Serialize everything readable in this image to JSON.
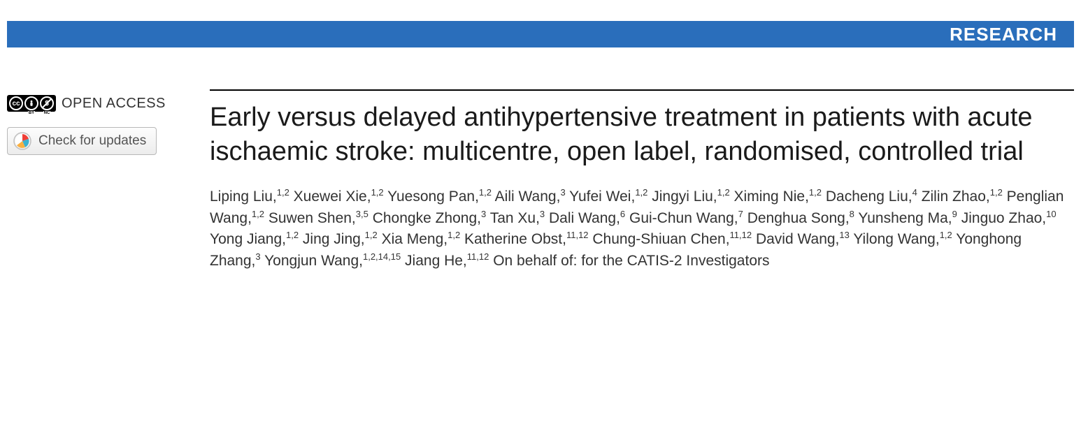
{
  "banner": {
    "label": "RESEARCH",
    "background_color": "#2a6ebb",
    "text_color": "#ffffff"
  },
  "sidebar": {
    "open_access_label": "OPEN ACCESS",
    "cc_symbols": [
      "CC",
      "BY",
      "NC"
    ],
    "updates_button_label": "Check for updates"
  },
  "article": {
    "title": "Early versus delayed antihypertensive treatment in patients with acute ischaemic stroke: multicentre, open label, randomised, controlled trial",
    "authors": [
      {
        "name": "Liping Liu",
        "aff": "1,2"
      },
      {
        "name": "Xuewei Xie",
        "aff": "1,2"
      },
      {
        "name": "Yuesong Pan",
        "aff": "1,2"
      },
      {
        "name": "Aili Wang",
        "aff": "3"
      },
      {
        "name": "Yufei Wei",
        "aff": "1,2"
      },
      {
        "name": "Jingyi Liu",
        "aff": "1,2"
      },
      {
        "name": "Ximing Nie",
        "aff": "1,2"
      },
      {
        "name": "Dacheng Liu",
        "aff": "4"
      },
      {
        "name": "Zilin Zhao",
        "aff": "1,2"
      },
      {
        "name": "Penglian Wang",
        "aff": "1,2"
      },
      {
        "name": "Suwen Shen",
        "aff": "3,5"
      },
      {
        "name": "Chongke Zhong",
        "aff": "3"
      },
      {
        "name": "Tan Xu",
        "aff": "3"
      },
      {
        "name": "Dali Wang",
        "aff": "6"
      },
      {
        "name": "Gui-Chun Wang",
        "aff": "7"
      },
      {
        "name": "Denghua Song",
        "aff": "8"
      },
      {
        "name": "Yunsheng Ma",
        "aff": "9"
      },
      {
        "name": "Jinguo Zhao",
        "aff": "10"
      },
      {
        "name": "Yong Jiang",
        "aff": "1,2"
      },
      {
        "name": "Jing Jing",
        "aff": "1,2"
      },
      {
        "name": "Xia Meng",
        "aff": "1,2"
      },
      {
        "name": "Katherine Obst",
        "aff": "11,12"
      },
      {
        "name": "Chung-Shiuan Chen",
        "aff": "11,12"
      },
      {
        "name": "David Wang",
        "aff": "13"
      },
      {
        "name": "Yilong Wang",
        "aff": "1,2"
      },
      {
        "name": "Yonghong Zhang",
        "aff": "3"
      },
      {
        "name": "Yongjun Wang",
        "aff": "1,2,14,15"
      },
      {
        "name": "Jiang He",
        "aff": "11,12"
      }
    ],
    "behalf_text": "On behalf of: for the CATIS-2 Investigators"
  },
  "style": {
    "title_fontsize": 38,
    "author_fontsize": 21,
    "banner_height": 38,
    "rule_color": "#000000"
  }
}
